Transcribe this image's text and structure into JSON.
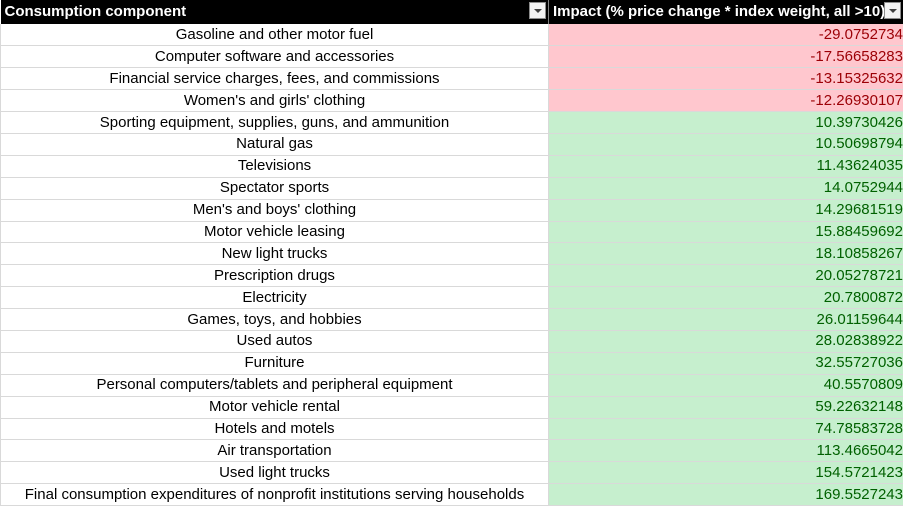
{
  "header": {
    "component_label": "Consumption component",
    "impact_label": "Impact (% price change * index weight, all >10)"
  },
  "colors": {
    "negative_fill": "#ffc7ce",
    "negative_text": "#9c0006",
    "positive_fill": "#c6efce",
    "positive_text": "#006100",
    "header_fill": "#000000"
  },
  "rows": [
    {
      "component": "Gasoline and other motor fuel",
      "impact": "-29.0752734",
      "sign": "neg"
    },
    {
      "component": "Computer software and accessories",
      "impact": "-17.56658283",
      "sign": "neg"
    },
    {
      "component": "Financial service charges, fees, and commissions",
      "impact": "-13.15325632",
      "sign": "neg"
    },
    {
      "component": "Women's and girls' clothing",
      "impact": "-12.26930107",
      "sign": "neg"
    },
    {
      "component": "Sporting equipment, supplies, guns, and ammunition",
      "impact": "10.39730426",
      "sign": "pos"
    },
    {
      "component": "Natural gas",
      "impact": "10.50698794",
      "sign": "pos"
    },
    {
      "component": "Televisions",
      "impact": "11.43624035",
      "sign": "pos"
    },
    {
      "component": "Spectator sports",
      "impact": "14.0752944",
      "sign": "pos"
    },
    {
      "component": "Men's and boys' clothing",
      "impact": "14.29681519",
      "sign": "pos"
    },
    {
      "component": "Motor vehicle leasing",
      "impact": "15.88459692",
      "sign": "pos"
    },
    {
      "component": "New light trucks",
      "impact": "18.10858267",
      "sign": "pos"
    },
    {
      "component": "Prescription drugs",
      "impact": "20.05278721",
      "sign": "pos"
    },
    {
      "component": "Electricity",
      "impact": "20.7800872",
      "sign": "pos"
    },
    {
      "component": "Games, toys, and hobbies",
      "impact": "26.01159644",
      "sign": "pos"
    },
    {
      "component": "Used autos",
      "impact": "28.02838922",
      "sign": "pos"
    },
    {
      "component": "Furniture",
      "impact": "32.55727036",
      "sign": "pos"
    },
    {
      "component": "Personal computers/tablets and peripheral equipment",
      "impact": "40.5570809",
      "sign": "pos"
    },
    {
      "component": "Motor vehicle rental",
      "impact": "59.22632148",
      "sign": "pos"
    },
    {
      "component": "Hotels and motels",
      "impact": "74.78583728",
      "sign": "pos"
    },
    {
      "component": "Air transportation",
      "impact": "113.4665042",
      "sign": "pos"
    },
    {
      "component": "Used light trucks",
      "impact": "154.5721423",
      "sign": "pos"
    },
    {
      "component": "Final consumption expenditures of nonprofit institutions serving households",
      "impact": "169.5527243",
      "sign": "pos"
    }
  ]
}
